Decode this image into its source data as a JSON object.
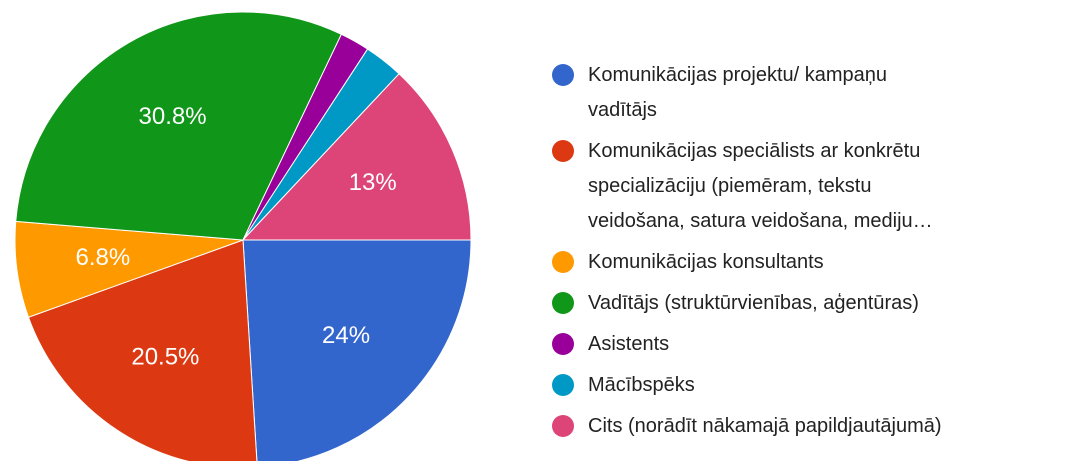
{
  "chart_data": {
    "type": "pie",
    "categories": [
      "Komunikācijas projektu/ kampaņu\nvadītājs",
      "Komunikācijas speciālists ar konkrētu\nspecializāciju (piemēram, tekstu\nveidošana, satura veidošana, mediju…",
      "Komunikācijas konsultants",
      "Vadītājs (struktūrvienības, aģentūras)",
      "Asistents",
      "Mācībspēks",
      "Cits (norādīt nākamajā papildjautājumā)"
    ],
    "values": [
      24,
      20.5,
      6.8,
      30.8,
      2.1,
      2.8,
      13
    ],
    "value_labels": [
      "24%",
      "20.5%",
      "6.8%",
      "30.8%",
      null,
      null,
      "13%"
    ],
    "colors": [
      "#3366cc",
      "#dc3912",
      "#ff9900",
      "#109618",
      "#990099",
      "#0099c6",
      "#dd4477"
    ]
  }
}
